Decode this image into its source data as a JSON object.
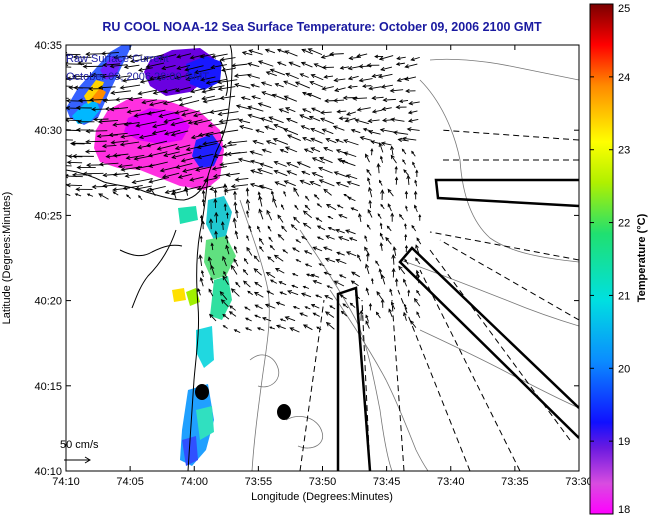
{
  "title": "RU COOL  NOAA-12  Sea Surface Temperature:  October 09, 2006 2100 GMT",
  "legend": {
    "line1": "Raw Surface Current",
    "line2": "October 09, 2006 20:00 GMT"
  },
  "scale_label": "50 cm/s",
  "xaxis": {
    "label": "Longitude (Degrees:Minutes)",
    "ticks": [
      "74:10",
      "74:05",
      "74:00",
      "73:55",
      "73:50",
      "73:45",
      "73:40",
      "73:35",
      "73:30"
    ]
  },
  "yaxis": {
    "label": "Latitude (Degrees:Minutes)",
    "ticks": [
      "40:35",
      "40:30",
      "40:25",
      "40:20",
      "40:15",
      "40:10"
    ]
  },
  "colorbar": {
    "label": "Temperature (°C)",
    "ticks": [
      "25",
      "24",
      "23",
      "22",
      "21",
      "20",
      "19",
      "18"
    ],
    "range": [
      18,
      25
    ]
  },
  "colors": {
    "title": "#1a1aa0",
    "coast": "#000000",
    "bathymetry": "#777777"
  },
  "chart_data": {
    "type": "heatmap",
    "title": "RU COOL  NOAA-12  Sea Surface Temperature:  October 09, 2006 2100 GMT",
    "xlabel": "Longitude (Degrees:Minutes)",
    "ylabel": "Latitude (Degrees:Minutes)",
    "xlim": [
      "74:10",
      "73:30"
    ],
    "ylim": [
      "40:10",
      "40:35"
    ],
    "value_range": [
      18,
      25
    ],
    "units": "°C"
  }
}
